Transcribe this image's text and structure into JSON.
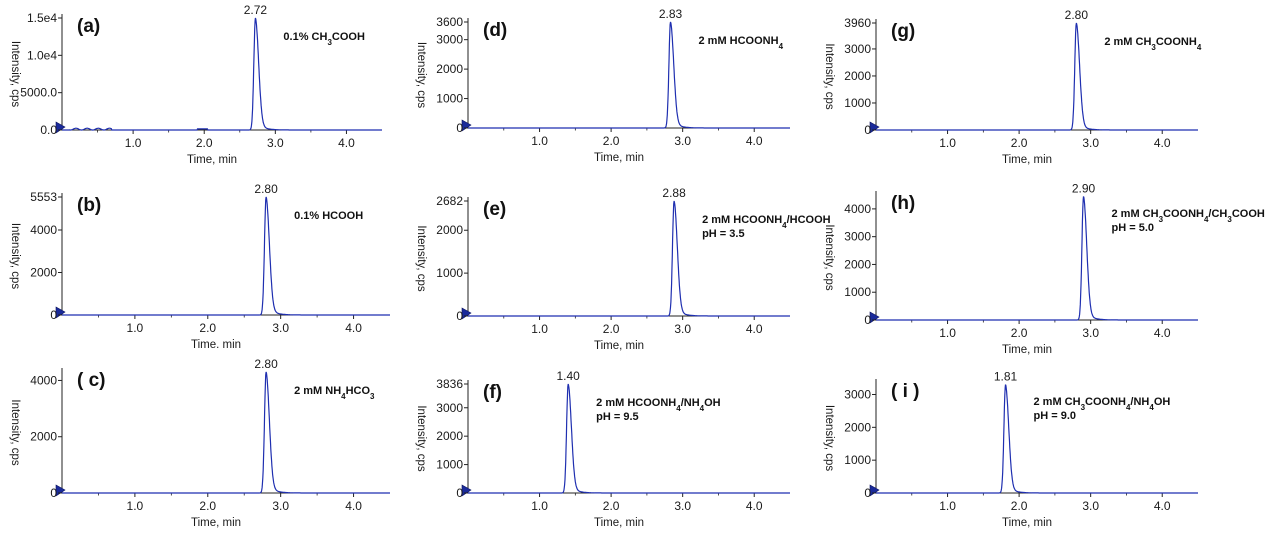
{
  "chart_data": [
    {
      "id": "a",
      "type": "line",
      "panel_label": "(a)",
      "condition": [
        "0.1% CH{3}COOH"
      ],
      "xlabel": "Time, min",
      "ylabel": "Intensity, cps",
      "xticks": [
        "1.0",
        "2.0",
        "3.0",
        "4.0"
      ],
      "yticks": [
        "0.0",
        "5000.0",
        "1.0e4",
        "1.5e4"
      ],
      "xlim": [
        0,
        4.5
      ],
      "ylim": [
        0,
        15000
      ],
      "peak": {
        "x": 2.72,
        "y": 15000,
        "label": "2.72"
      },
      "line_color": "#1f2fb0"
    },
    {
      "id": "b",
      "type": "line",
      "panel_label": "(b)",
      "condition": [
        "0.1% HCOOH"
      ],
      "xlabel": "Time. min",
      "ylabel": "Intensity, cps",
      "xticks": [
        "1.0",
        "2.0",
        "3.0",
        "4.0"
      ],
      "yticks": [
        "0",
        "2000",
        "4000",
        "5553"
      ],
      "xlim": [
        0,
        4.5
      ],
      "ylim": [
        0,
        5553
      ],
      "peak": {
        "x": 2.8,
        "y": 5553,
        "label": "2.80"
      },
      "line_color": "#1f2fb0"
    },
    {
      "id": "c",
      "type": "line",
      "panel_label": "( c)",
      "condition": [
        "2 mM NH{4}HCO{3}"
      ],
      "xlabel": "Time, min",
      "ylabel": "Intensity, cps",
      "xticks": [
        "1.0",
        "2.0",
        "3.0",
        "4.0"
      ],
      "yticks": [
        "0",
        "2000",
        "4000"
      ],
      "xlim": [
        0,
        4.5
      ],
      "ylim": [
        0,
        4300
      ],
      "peak": {
        "x": 2.8,
        "y": 4300,
        "label": "2.80"
      },
      "line_color": "#1f2fb0"
    },
    {
      "id": "d",
      "type": "line",
      "panel_label": "(d)",
      "condition": [
        "2 mM HCOONH{4}"
      ],
      "xlabel": "Time, min",
      "ylabel": "Intensity, cps",
      "xticks": [
        "1.0",
        "2.0",
        "3.0",
        "4.0"
      ],
      "yticks": [
        "0",
        "1000",
        "2000",
        "3000",
        "3600"
      ],
      "xlim": [
        0,
        4.5
      ],
      "ylim": [
        0,
        3600
      ],
      "peak": {
        "x": 2.83,
        "y": 3600,
        "label": "2.83"
      },
      "line_color": "#1f2fb0"
    },
    {
      "id": "e",
      "type": "line",
      "panel_label": "(e)",
      "condition": [
        "2 mM HCOONH{4}/HCOOH",
        "pH = 3.5"
      ],
      "xlabel": "Time, min",
      "ylabel": "Intensity, cps",
      "xticks": [
        "1.0",
        "2.0",
        "3.0",
        "4.0"
      ],
      "yticks": [
        "0",
        "1000",
        "2000",
        "2682"
      ],
      "xlim": [
        0,
        4.5
      ],
      "ylim": [
        0,
        2682
      ],
      "peak": {
        "x": 2.88,
        "y": 2682,
        "label": "2.88"
      },
      "line_color": "#1f2fb0"
    },
    {
      "id": "f",
      "type": "line",
      "panel_label": "(f)",
      "condition": [
        "2 mM HCOONH{4}/NH{4}OH",
        "pH = 9.5"
      ],
      "xlabel": "Time, min",
      "ylabel": "Intensity, cps",
      "xticks": [
        "1.0",
        "2.0",
        "3.0",
        "4.0"
      ],
      "yticks": [
        "0",
        "1000",
        "2000",
        "3000",
        "3836"
      ],
      "xlim": [
        0,
        4.5
      ],
      "ylim": [
        0,
        3836
      ],
      "peak": {
        "x": 1.4,
        "y": 3836,
        "label": "1.40"
      },
      "line_color": "#1f2fb0"
    },
    {
      "id": "g",
      "type": "line",
      "panel_label": "(g)",
      "condition": [
        "2 mM CH{3}COONH{4}"
      ],
      "xlabel": "Time, min",
      "ylabel": "Intensity, cps",
      "xticks": [
        "1.0",
        "2.0",
        "3.0",
        "4.0"
      ],
      "yticks": [
        "0",
        "1000",
        "2000",
        "3000",
        "3960"
      ],
      "xlim": [
        0,
        4.5
      ],
      "ylim": [
        0,
        3960
      ],
      "peak": {
        "x": 2.8,
        "y": 3960,
        "label": "2.80"
      },
      "line_color": "#1f2fb0"
    },
    {
      "id": "h",
      "type": "line",
      "panel_label": "(h)",
      "condition": [
        "2 mM CH{3}COONH{4}/CH{3}COOH",
        "pH = 5.0"
      ],
      "xlabel": "Time, min",
      "ylabel": "Intensity, cps",
      "xticks": [
        "1.0",
        "2.0",
        "3.0",
        "4.0"
      ],
      "yticks": [
        "0",
        "1000",
        "2000",
        "3000",
        "4000"
      ],
      "xlim": [
        0,
        4.5
      ],
      "ylim": [
        0,
        4500
      ],
      "peak": {
        "x": 2.9,
        "y": 4450,
        "label": "2.90"
      },
      "line_color": "#1f2fb0"
    },
    {
      "id": "i",
      "type": "line",
      "panel_label": "( i )",
      "condition": [
        "2 mM CH{3}COONH{4}/NH{4}OH",
        "pH = 9.0"
      ],
      "xlabel": "Time, min",
      "ylabel": "Intensity, cps",
      "xticks": [
        "1.0",
        "2.0",
        "3.0",
        "4.0"
      ],
      "yticks": [
        "0",
        "1000",
        "2000",
        "3000"
      ],
      "xlim": [
        0,
        4.5
      ],
      "ylim": [
        0,
        3350
      ],
      "peak": {
        "x": 1.81,
        "y": 3300,
        "label": "1.81"
      },
      "line_color": "#1f2fb0"
    }
  ]
}
